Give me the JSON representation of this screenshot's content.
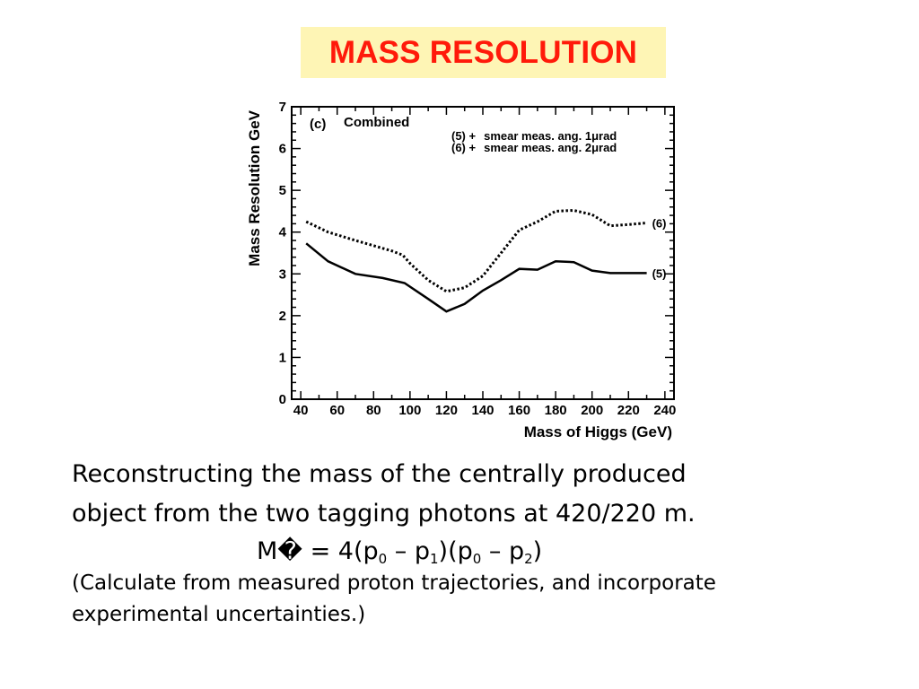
{
  "title": "MASS RESOLUTION",
  "colors": {
    "title_text": "#ff1a0a",
    "title_bg": "#fef5b5"
  },
  "chart_data": {
    "type": "line",
    "panel_label": "(c)",
    "panel_title": "Combined",
    "xlabel": "Mass of Higgs (GeV)",
    "ylabel": "Mass Resolution GeV",
    "xlim": [
      35,
      245
    ],
    "ylim": [
      0,
      7
    ],
    "x_ticks": [
      "40",
      "60",
      "80",
      "100",
      "120",
      "140",
      "160",
      "180",
      "200",
      "220",
      "240"
    ],
    "y_ticks": [
      "0",
      "1",
      "2",
      "3",
      "4",
      "5",
      "6",
      "7"
    ],
    "legend": [
      {
        "id": "(5) +",
        "text": "smear meas. ang. 1",
        "unit": "μrad"
      },
      {
        "id": "(6) +",
        "text": "smear meas. ang. 2",
        "unit": "μrad"
      }
    ],
    "series": [
      {
        "name": "(6)",
        "style": "dotted",
        "x": [
          43,
          55,
          70,
          90,
          96,
          100,
          110,
          120,
          130,
          140,
          150,
          160,
          170,
          180,
          190,
          200,
          210,
          220,
          230
        ],
        "y": [
          4.25,
          4.0,
          3.8,
          3.55,
          3.45,
          3.25,
          2.85,
          2.58,
          2.67,
          2.95,
          3.5,
          4.05,
          4.25,
          4.5,
          4.52,
          4.42,
          4.15,
          4.18,
          4.22
        ]
      },
      {
        "name": "(5)",
        "style": "solid",
        "x": [
          43,
          55,
          70,
          85,
          97,
          110,
          120,
          130,
          140,
          150,
          160,
          170,
          180,
          190,
          200,
          210,
          220,
          230
        ],
        "y": [
          3.73,
          3.3,
          3.0,
          2.9,
          2.78,
          2.4,
          2.1,
          2.28,
          2.6,
          2.85,
          3.12,
          3.1,
          3.3,
          3.28,
          3.08,
          3.02,
          3.02,
          3.02
        ]
      }
    ]
  },
  "text": {
    "line1": "Reconstructing the mass of the centrally produced",
    "line2": "object from the two tagging photons at 420/220 m.",
    "formula": {
      "lhs": "M� = 4(p",
      "s1": "0",
      "m1": " – p",
      "s2": "1",
      "m2": ")(p",
      "s3": "0",
      "m3": " – p",
      "s4": "2",
      "m4": ")"
    },
    "line4": "(Calculate from measured proton trajectories, and incorporate",
    "line5": "experimental uncertainties.)"
  }
}
